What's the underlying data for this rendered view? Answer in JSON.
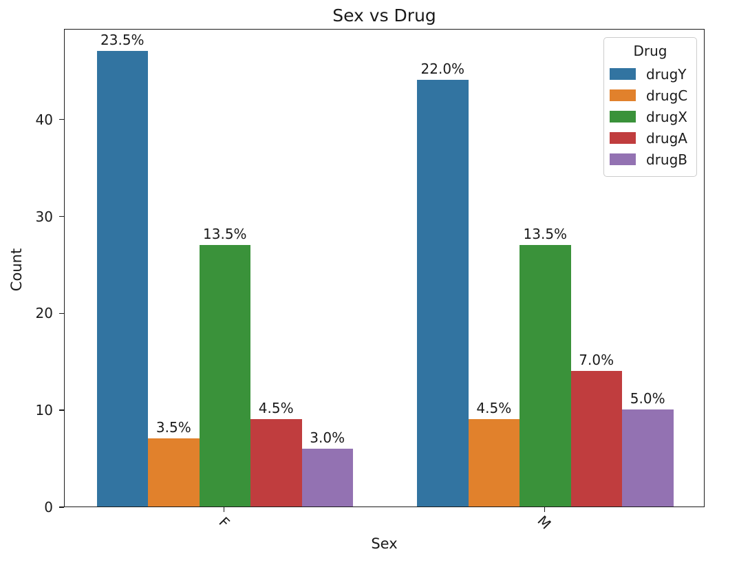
{
  "chart_data": {
    "type": "bar",
    "title": "Sex vs Drug",
    "xlabel": "Sex",
    "ylabel": "Count",
    "categories": [
      "F",
      "M"
    ],
    "series": [
      {
        "name": "drugY",
        "color": "#3274a1",
        "values": [
          47,
          44
        ],
        "labels": [
          "23.5%",
          "22.0%"
        ]
      },
      {
        "name": "drugC",
        "color": "#e1812c",
        "values": [
          7,
          9
        ],
        "labels": [
          "3.5%",
          "4.5%"
        ]
      },
      {
        "name": "drugX",
        "color": "#3a923a",
        "values": [
          27,
          27
        ],
        "labels": [
          "13.5%",
          "13.5%"
        ]
      },
      {
        "name": "drugA",
        "color": "#c03d3e",
        "values": [
          9,
          14
        ],
        "labels": [
          "4.5%",
          "7.0%"
        ]
      },
      {
        "name": "drugB",
        "color": "#9372b2",
        "values": [
          6,
          10
        ],
        "labels": [
          "3.0%",
          "5.0%"
        ]
      }
    ],
    "ylim": [
      0,
      49.35
    ],
    "yticks": [
      0,
      10,
      20,
      30,
      40
    ],
    "grid": false,
    "legend": {
      "title": "Drug",
      "position": "upper right"
    },
    "bar_group_width_fraction": 0.8,
    "background_color": "#ffffff",
    "text_color": "#1a1a1a"
  }
}
